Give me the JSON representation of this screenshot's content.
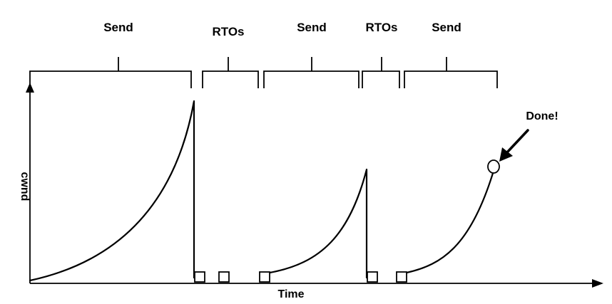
{
  "phases": [
    {
      "label": "Send"
    },
    {
      "label": "RTOs"
    },
    {
      "label": "Send"
    },
    {
      "label": "RTOs"
    },
    {
      "label": "Send"
    }
  ],
  "axes": {
    "x_label": "Time",
    "y_label": "cwnd"
  },
  "annotation": {
    "label": "Done!"
  }
}
